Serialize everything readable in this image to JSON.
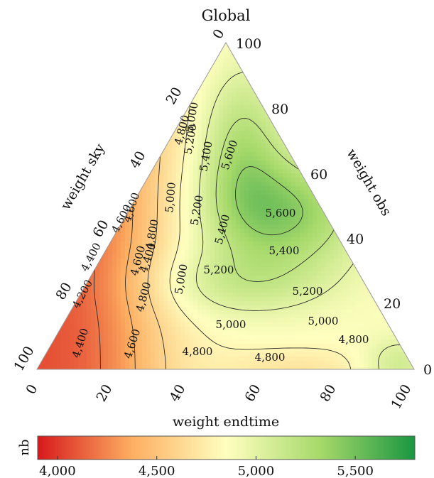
{
  "chart_data": {
    "type": "heatmap",
    "subtype": "ternary-contour",
    "title": "Global",
    "axes": {
      "left": {
        "label": "weight sky",
        "ticks": [
          "0",
          "20",
          "40",
          "60",
          "80",
          "100"
        ]
      },
      "right": {
        "label": "weight obs",
        "ticks": [
          "0",
          "20",
          "40",
          "60",
          "80",
          "100"
        ]
      },
      "bottom": {
        "label": "weight endtime",
        "ticks": [
          "0",
          "20",
          "40",
          "60",
          "80",
          "100"
        ]
      }
    },
    "contour_levels": [
      4200,
      4400,
      4600,
      4800,
      5000,
      5200,
      5400,
      5600
    ],
    "contour_labels": [
      {
        "text": "4,200",
        "level": 4200
      },
      {
        "text": "4,400",
        "level": 4400
      },
      {
        "text": "4,400",
        "level": 4400
      },
      {
        "text": "4,400",
        "level": 4400
      },
      {
        "text": "4,600",
        "level": 4600
      },
      {
        "text": "4,600",
        "level": 4600
      },
      {
        "text": "4,600",
        "level": 4600
      },
      {
        "text": "4,600",
        "level": 4600
      },
      {
        "text": "4,800",
        "level": 4800
      },
      {
        "text": "4,800",
        "level": 4800
      },
      {
        "text": "4,800",
        "level": 4800
      },
      {
        "text": "4,800",
        "level": 4800
      },
      {
        "text": "4,800",
        "level": 4800
      },
      {
        "text": "4,800",
        "level": 4800
      },
      {
        "text": "5,000",
        "level": 5000
      },
      {
        "text": "5,000",
        "level": 5000
      },
      {
        "text": "5,000",
        "level": 5000
      },
      {
        "text": "5,000",
        "level": 5000
      },
      {
        "text": "5,000",
        "level": 5000
      },
      {
        "text": "5,200",
        "level": 5200
      },
      {
        "text": "5,200",
        "level": 5200
      },
      {
        "text": "5,200",
        "level": 5200
      },
      {
        "text": "5,200",
        "level": 5200
      },
      {
        "text": "5,400",
        "level": 5400
      },
      {
        "text": "5,400",
        "level": 5400
      },
      {
        "text": "5,400",
        "level": 5400
      },
      {
        "text": "5,600",
        "level": 5600
      },
      {
        "text": "5,600",
        "level": 5600
      }
    ],
    "colorbar": {
      "label": "nb",
      "range": [
        3900,
        5800
      ],
      "ticks": [
        "4,000",
        "4,500",
        "5,000",
        "5,500"
      ],
      "tick_values": [
        4000,
        4500,
        5000,
        5500
      ],
      "colormap": [
        "#d7191c",
        "#fdae61",
        "#ffffbf",
        "#a6d96a",
        "#1a9641"
      ]
    },
    "grid": false
  }
}
